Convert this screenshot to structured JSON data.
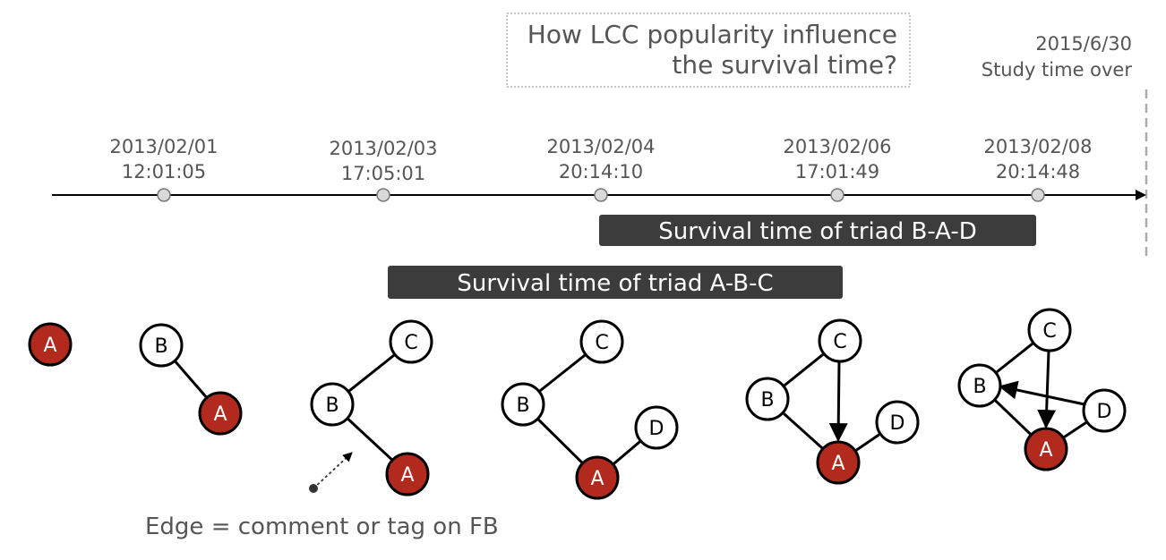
{
  "question": {
    "line1": "How LCC popularity influence",
    "line2": "the survival time?"
  },
  "study_end": {
    "date": "2015/6/30",
    "label": "Study time over"
  },
  "timeline_events": [
    {
      "date": "2013/02/01",
      "time": "12:01:05"
    },
    {
      "date": "2013/02/03",
      "time": "17:05:01"
    },
    {
      "date": "2013/02/04",
      "time": "20:14:10"
    },
    {
      "date": "2013/02/06",
      "time": "17:01:49"
    },
    {
      "date": "2013/02/08",
      "time": "20:14:48"
    }
  ],
  "survival_bars": [
    {
      "label": "Survival time of triad B-A-D"
    },
    {
      "label": "Survival time of triad A-B-C"
    }
  ],
  "nodes": {
    "A": "A",
    "B": "B",
    "C": "C",
    "D": "D"
  },
  "legend": {
    "edge_label": "Edge = comment or tag on FB"
  },
  "colors": {
    "focal_node": "#b22a1e",
    "bar": "#3c3c3c",
    "timeline_dot": "#d9d9d9",
    "dashed_line": "#aaaaaa"
  }
}
